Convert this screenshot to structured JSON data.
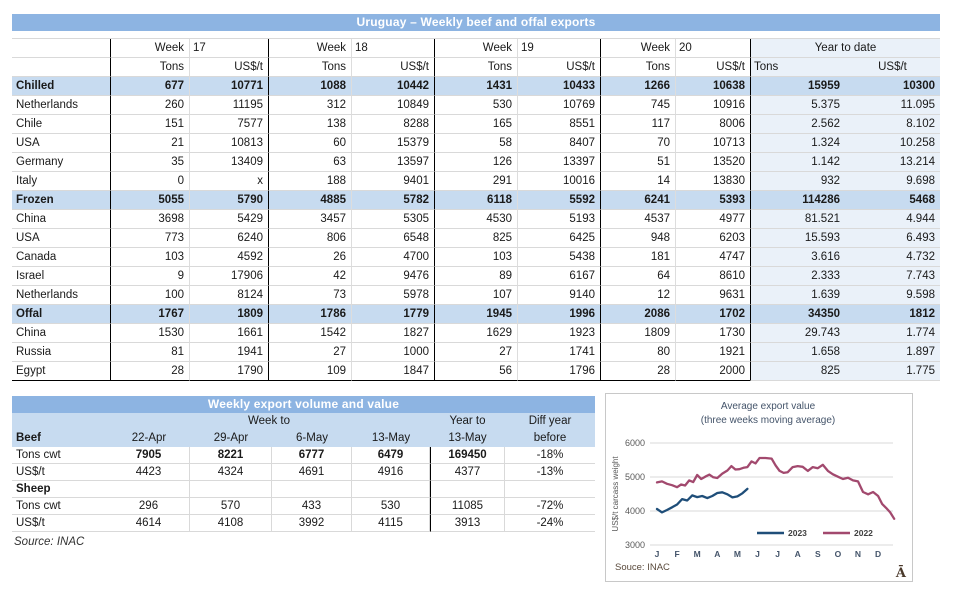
{
  "table1": {
    "title": "Uruguay – Weekly beef and offal exports",
    "week_label": "Week",
    "weeks": [
      "17",
      "18",
      "19",
      "20"
    ],
    "ytd_label": "Year to date",
    "tons_label": "Tons",
    "usdt_label": "US$/t",
    "rows": [
      {
        "label": "Chilled",
        "type": "section",
        "values": [
          "677",
          "10771",
          "1088",
          "10442",
          "1431",
          "10433",
          "1266",
          "10638",
          "15959",
          "10300"
        ]
      },
      {
        "label": "Netherlands",
        "type": "country",
        "values": [
          "260",
          "11195",
          "312",
          "10849",
          "530",
          "10769",
          "745",
          "10916",
          "5.375",
          "11.095"
        ]
      },
      {
        "label": "Chile",
        "type": "country",
        "values": [
          "151",
          "7577",
          "138",
          "8288",
          "165",
          "8551",
          "117",
          "8006",
          "2.562",
          "8.102"
        ]
      },
      {
        "label": "USA",
        "type": "country",
        "values": [
          "21",
          "10813",
          "60",
          "15379",
          "58",
          "8407",
          "70",
          "10713",
          "1.324",
          "10.258"
        ]
      },
      {
        "label": "Germany",
        "type": "country",
        "values": [
          "35",
          "13409",
          "63",
          "13597",
          "126",
          "13397",
          "51",
          "13520",
          "1.142",
          "13.214"
        ]
      },
      {
        "label": "Italy",
        "type": "country",
        "values": [
          "0",
          "x",
          "188",
          "9401",
          "291",
          "10016",
          "14",
          "13830",
          "932",
          "9.698"
        ]
      },
      {
        "label": "Frozen",
        "type": "section",
        "values": [
          "5055",
          "5790",
          "4885",
          "5782",
          "6118",
          "5592",
          "6241",
          "5393",
          "114286",
          "5468"
        ]
      },
      {
        "label": "China",
        "type": "country",
        "values": [
          "3698",
          "5429",
          "3457",
          "5305",
          "4530",
          "5193",
          "4537",
          "4977",
          "81.521",
          "4.944"
        ]
      },
      {
        "label": "USA",
        "type": "country",
        "values": [
          "773",
          "6240",
          "806",
          "6548",
          "825",
          "6425",
          "948",
          "6203",
          "15.593",
          "6.493"
        ]
      },
      {
        "label": "Canada",
        "type": "country",
        "values": [
          "103",
          "4592",
          "26",
          "4700",
          "103",
          "5438",
          "181",
          "4747",
          "3.616",
          "4.732"
        ]
      },
      {
        "label": "Israel",
        "type": "country",
        "values": [
          "9",
          "17906",
          "42",
          "9476",
          "89",
          "6167",
          "64",
          "8610",
          "2.333",
          "7.743"
        ]
      },
      {
        "label": "Netherlands",
        "type": "country",
        "values": [
          "100",
          "8124",
          "73",
          "5978",
          "107",
          "9140",
          "12",
          "9631",
          "1.639",
          "9.598"
        ]
      },
      {
        "label": "Offal",
        "type": "section",
        "values": [
          "1767",
          "1809",
          "1786",
          "1779",
          "1945",
          "1996",
          "2086",
          "1702",
          "34350",
          "1812"
        ]
      },
      {
        "label": "China",
        "type": "country",
        "values": [
          "1530",
          "1661",
          "1542",
          "1827",
          "1629",
          "1923",
          "1809",
          "1730",
          "29.743",
          "1.774"
        ]
      },
      {
        "label": "Russia",
        "type": "country",
        "values": [
          "81",
          "1941",
          "27",
          "1000",
          "27",
          "1741",
          "80",
          "1921",
          "1.658",
          "1.897"
        ]
      },
      {
        "label": "Egypt",
        "type": "country",
        "values": [
          "28",
          "1790",
          "109",
          "1847",
          "56",
          "1796",
          "28",
          "2000",
          "825",
          "1.775"
        ]
      }
    ]
  },
  "table2": {
    "title": "Weekly export volume and value",
    "week_to_label": "Week to",
    "year_to_label": "Year to",
    "diff_label": "Diff year",
    "group_label": "Beef",
    "col_headers": [
      "22-Apr",
      "29-Apr",
      "6-May",
      "13-May",
      "13-May",
      "before"
    ],
    "rows": [
      {
        "label": "Tons cwt",
        "bold_label": false,
        "bold_values": true,
        "values": [
          "7905",
          "8221",
          "6777",
          "6479",
          "169450",
          "-18%"
        ]
      },
      {
        "label": "US$/t",
        "bold_label": false,
        "bold_values": false,
        "values": [
          "4423",
          "4324",
          "4691",
          "4916",
          "4377",
          "-13%"
        ]
      },
      {
        "label": "Sheep",
        "bold_label": true,
        "bold_values": false,
        "values": [
          "",
          "",
          "",
          "",
          "",
          ""
        ]
      },
      {
        "label": "Tons cwt",
        "bold_label": false,
        "bold_values": false,
        "values": [
          "296",
          "570",
          "433",
          "530",
          "11085",
          "-72%"
        ]
      },
      {
        "label": "US$/t",
        "bold_label": false,
        "bold_values": false,
        "values": [
          "4614",
          "4108",
          "3992",
          "4115",
          "3913",
          "-24%"
        ]
      }
    ],
    "source": "Source: INAC"
  },
  "chart_data": {
    "type": "line",
    "title": "Average export  value",
    "subtitle": "(three weeks moving average)",
    "ylabel": "US$/t carcass weight",
    "ylim": [
      3000,
      6000
    ],
    "yticks": [
      3000,
      4000,
      5000,
      6000
    ],
    "grid": true,
    "x_unit": "month_index_0_is_january",
    "months": [
      "J",
      "F",
      "M",
      "A",
      "M",
      "J",
      "J",
      "A",
      "S",
      "O",
      "N",
      "D"
    ],
    "legend": [
      "2023",
      "2022"
    ],
    "legend_position": "bottom-center",
    "colors": {
      "y2023": "#1F4E79",
      "y2022": "#A2496E"
    },
    "series": [
      {
        "name": "2023",
        "color": "#1F4E79",
        "points": [
          [
            0.0,
            4060
          ],
          [
            0.25,
            3960
          ],
          [
            0.5,
            4030
          ],
          [
            0.75,
            4110
          ],
          [
            1.0,
            4190
          ],
          [
            1.25,
            4350
          ],
          [
            1.5,
            4310
          ],
          [
            1.75,
            4460
          ],
          [
            2.0,
            4410
          ],
          [
            2.25,
            4440
          ],
          [
            2.5,
            4380
          ],
          [
            2.75,
            4440
          ],
          [
            3.0,
            4530
          ],
          [
            3.25,
            4550
          ],
          [
            3.5,
            4490
          ],
          [
            3.75,
            4400
          ],
          [
            4.0,
            4430
          ],
          [
            4.25,
            4520
          ],
          [
            4.5,
            4650
          ]
        ]
      },
      {
        "name": "2022",
        "color": "#A2496E",
        "points": [
          [
            0.0,
            4840
          ],
          [
            0.25,
            4870
          ],
          [
            0.5,
            4800
          ],
          [
            0.75,
            4760
          ],
          [
            1.0,
            4700
          ],
          [
            1.2,
            4780
          ],
          [
            1.4,
            4750
          ],
          [
            1.6,
            4900
          ],
          [
            1.8,
            4850
          ],
          [
            2.0,
            5060
          ],
          [
            2.2,
            4940
          ],
          [
            2.4,
            5010
          ],
          [
            2.6,
            5070
          ],
          [
            2.8,
            4990
          ],
          [
            3.0,
            4970
          ],
          [
            3.25,
            5100
          ],
          [
            3.5,
            5190
          ],
          [
            3.7,
            5320
          ],
          [
            3.9,
            5220
          ],
          [
            4.1,
            5230
          ],
          [
            4.3,
            5270
          ],
          [
            4.5,
            5290
          ],
          [
            4.7,
            5460
          ],
          [
            4.9,
            5400
          ],
          [
            5.1,
            5560
          ],
          [
            5.4,
            5560
          ],
          [
            5.7,
            5540
          ],
          [
            5.9,
            5340
          ],
          [
            6.1,
            5180
          ],
          [
            6.3,
            5120
          ],
          [
            6.5,
            5140
          ],
          [
            6.75,
            5290
          ],
          [
            7.0,
            5320
          ],
          [
            7.25,
            5300
          ],
          [
            7.5,
            5180
          ],
          [
            7.75,
            5290
          ],
          [
            8.0,
            5260
          ],
          [
            8.25,
            5360
          ],
          [
            8.5,
            5180
          ],
          [
            8.75,
            5080
          ],
          [
            9.0,
            5010
          ],
          [
            9.25,
            4940
          ],
          [
            9.5,
            4980
          ],
          [
            9.75,
            4900
          ],
          [
            10.0,
            4870
          ],
          [
            10.25,
            4560
          ],
          [
            10.5,
            4490
          ],
          [
            10.75,
            4560
          ],
          [
            11.0,
            4440
          ],
          [
            11.2,
            4210
          ],
          [
            11.4,
            4090
          ],
          [
            11.6,
            3960
          ],
          [
            11.8,
            3770
          ]
        ]
      }
    ],
    "source": "Souce: INAC",
    "watermark": "Ā"
  }
}
